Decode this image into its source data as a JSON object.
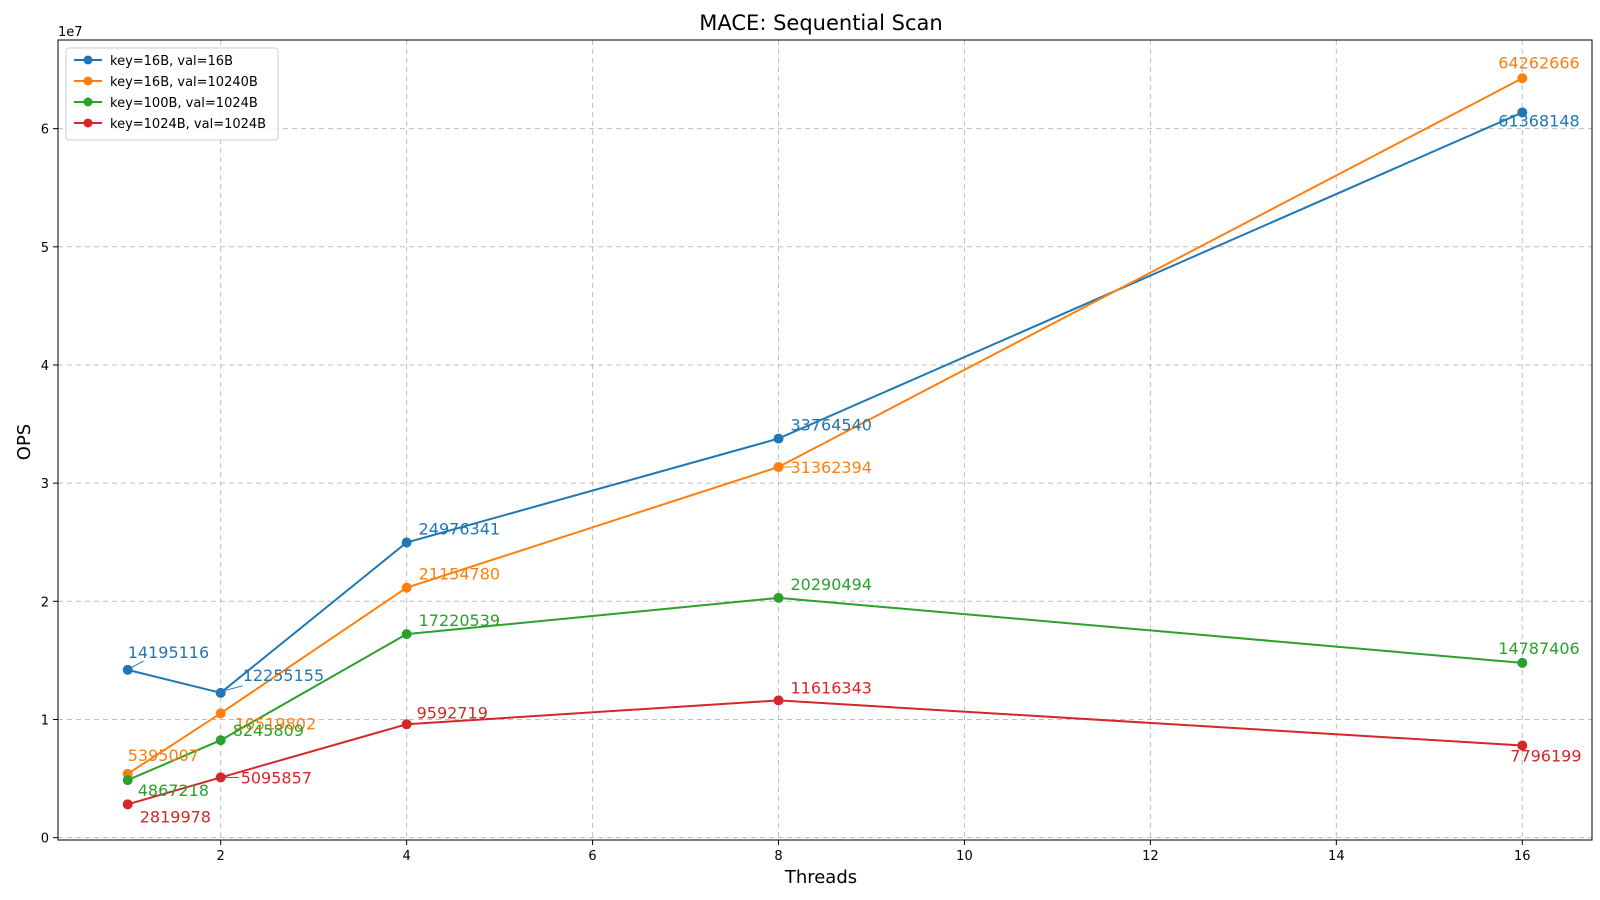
{
  "chart_data": {
    "type": "line",
    "title": "MACE: Sequential Scan",
    "xlabel": "Threads",
    "ylabel": "OPS",
    "y_offset_label": "1e7",
    "x": [
      1,
      2,
      4,
      8,
      16
    ],
    "xlim": [
      0.25,
      16.75
    ],
    "ylim": [
      -200000,
      67500000
    ],
    "x_ticks": [
      2,
      4,
      6,
      8,
      10,
      12,
      14,
      16
    ],
    "y_ticks": [
      0,
      10000000,
      20000000,
      30000000,
      40000000,
      50000000,
      60000000
    ],
    "y_tick_labels": [
      "0",
      "1",
      "2",
      "3",
      "4",
      "5",
      "6"
    ],
    "grid": true,
    "legend_position": "top-left",
    "series": [
      {
        "name": "key=16B, val=16B",
        "color": "#1f77b4",
        "values": [
          14195116,
          12255155,
          24976341,
          33764540,
          61368148
        ]
      },
      {
        "name": "key=16B, val=10240B",
        "color": "#ff7f0e",
        "values": [
          5395007,
          10519802,
          21154780,
          31362394,
          64262666
        ]
      },
      {
        "name": "key=100B, val=1024B",
        "color": "#2ca02c",
        "values": [
          4867218,
          8245809,
          17220539,
          20290494,
          14787406
        ]
      },
      {
        "name": "key=1024B, val=1024B",
        "color": "#d62728",
        "values": [
          2819978,
          5095857,
          9592719,
          11616343,
          7796199
        ]
      }
    ],
    "data_labels": [
      [
        "14195116",
        "12255155",
        "24976341",
        "33764540",
        "61368148"
      ],
      [
        "5395007",
        "10519802",
        "21154780",
        "31362394",
        "64262666"
      ],
      [
        "4867218",
        "8245809",
        "17220539",
        "20290494",
        "14787406"
      ],
      [
        "2819978",
        "5095857",
        "9592719",
        "11616343",
        "7796199"
      ]
    ]
  }
}
